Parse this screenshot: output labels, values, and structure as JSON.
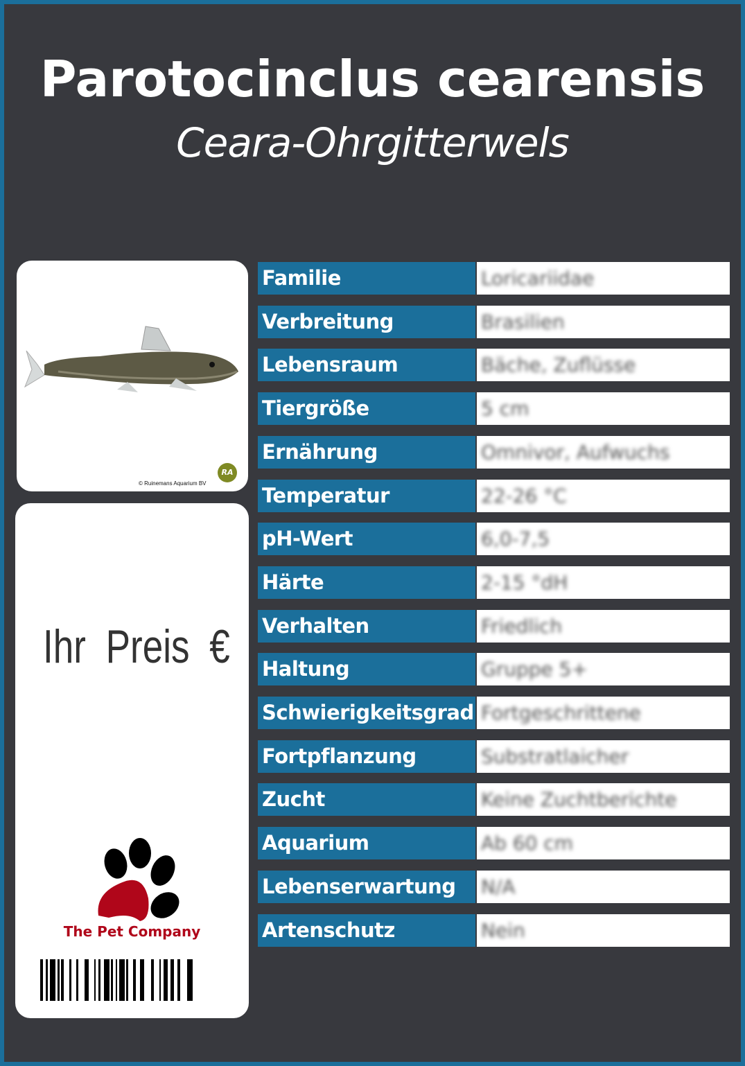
{
  "header": {
    "title": "Parotocinclus cearensis",
    "subtitle": "Ceara-Ohrgitterwels"
  },
  "photo": {
    "credit": "© Ruinemans Aquarium BV",
    "logo_text": "RA"
  },
  "price": {
    "label": "Ihr  Preis  €"
  },
  "brand": {
    "name": "The Pet Company",
    "paw_color": "#b0061a"
  },
  "colors": {
    "accent": "#1b6f9b",
    "background": "#38393e"
  },
  "facts": [
    {
      "label": "Familie",
      "value": "Loricariidae"
    },
    {
      "label": "Verbreitung",
      "value": "Brasilien"
    },
    {
      "label": "Lebensraum",
      "value": "Bäche, Zuflüsse"
    },
    {
      "label": "Tiergröße",
      "value": "5 cm"
    },
    {
      "label": "Ernährung",
      "value": "Omnivor, Aufwuchs"
    },
    {
      "label": "Temperatur",
      "value": "22-26 °C"
    },
    {
      "label": "pH-Wert",
      "value": "6,0-7,5"
    },
    {
      "label": "Härte",
      "value": "2-15 °dH"
    },
    {
      "label": "Verhalten",
      "value": "Friedlich"
    },
    {
      "label": "Haltung",
      "value": "Gruppe 5+"
    },
    {
      "label": "Schwierigkeitsgrad",
      "value": "Fortgeschrittene"
    },
    {
      "label": "Fortpflanzung",
      "value": "Substratlaicher"
    },
    {
      "label": "Zucht",
      "value": "Keine Zuchtberichte"
    },
    {
      "label": "Aquarium",
      "value": "Ab 60 cm"
    },
    {
      "label": "Lebenserwartung",
      "value": "N/A"
    },
    {
      "label": "Artenschutz",
      "value": "Nein"
    }
  ]
}
